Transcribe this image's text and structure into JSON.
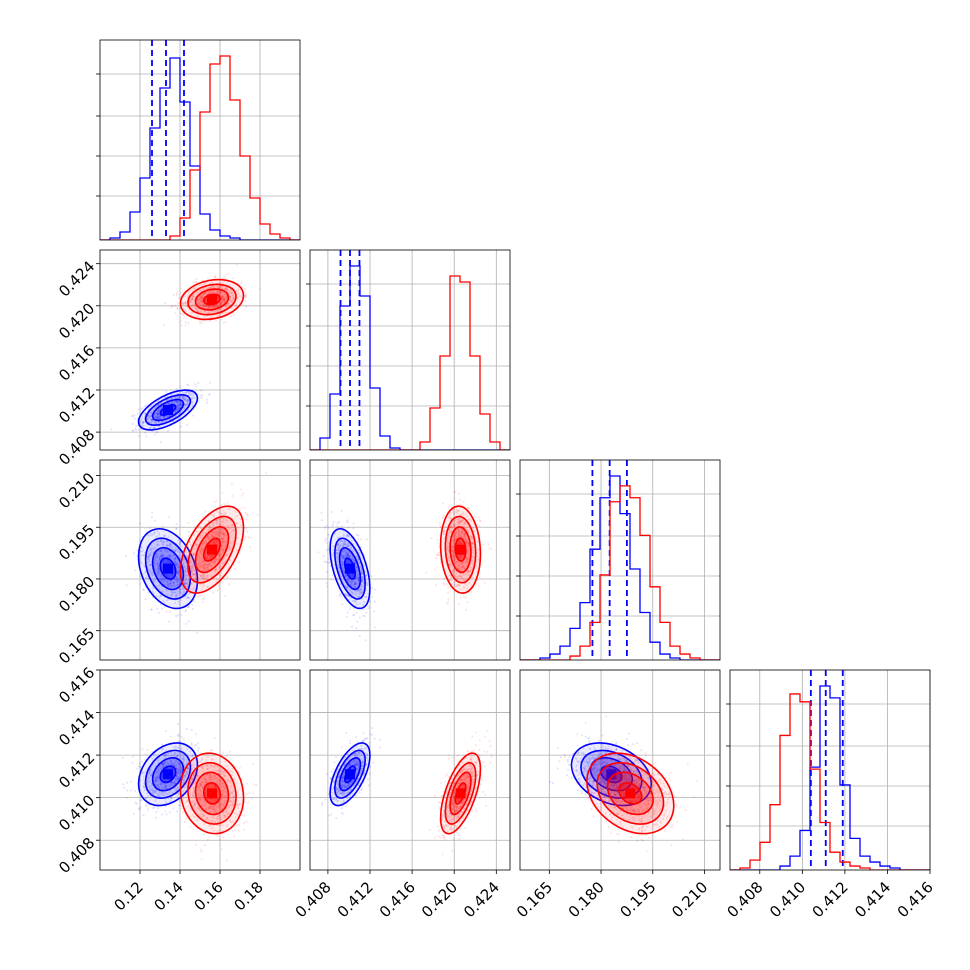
{
  "chart_data": {
    "type": "corner",
    "grid": true,
    "parameters": [
      {
        "index": 0,
        "range": [
          0.1,
          0.2
        ],
        "ticks": [
          0.12,
          0.14,
          0.16,
          0.18
        ],
        "tick_labels": [
          "0.12",
          "0.14",
          "0.16",
          "0.18"
        ],
        "ylabel_ticks": []
      },
      {
        "index": 1,
        "range": [
          0.4063,
          0.4253
        ],
        "ticks": [
          0.408,
          0.412,
          0.416,
          0.42,
          0.424
        ],
        "tick_labels": [
          "0.408",
          "0.412",
          "0.416",
          "0.420",
          "0.424"
        ]
      },
      {
        "index": 2,
        "range": [
          0.1565,
          0.2145
        ],
        "ticks": [
          0.165,
          0.18,
          0.195,
          0.21
        ],
        "tick_labels": [
          "0.165",
          "0.180",
          "0.195",
          "0.210"
        ]
      },
      {
        "index": 3,
        "range": [
          0.4066,
          0.416
        ],
        "ticks": [
          0.408,
          0.41,
          0.412,
          0.414,
          0.416
        ],
        "tick_labels": [
          "0.408",
          "0.410",
          "0.412",
          "0.414",
          "0.416"
        ]
      }
    ],
    "series": [
      {
        "color": "#0000ff",
        "means": [
          0.134,
          0.4101,
          0.183,
          0.4111
        ],
        "sigmas": [
          0.007,
          0.0009,
          0.0055,
          0.0007
        ],
        "correlations": {
          "1,0": 0.6,
          "2,0": -0.3,
          "2,1": -0.5,
          "3,0": 0.3,
          "3,1": 0.6,
          "3,2": -0.3
        },
        "quantile_lines": [
          [
            0.126,
            0.133,
            0.142
          ],
          [
            0.4092,
            0.4101,
            0.411
          ],
          [
            0.1775,
            0.1825,
            0.1875
          ],
          [
            0.4104,
            0.4111,
            0.4119
          ]
        ],
        "histograms": [
          {
            "edges_range": [
              0.1,
              0.2
            ],
            "counts": [
              0.0,
              0.01,
              0.04,
              0.14,
              0.31,
              0.56,
              0.76,
              0.91,
              0.69,
              0.37,
              0.13,
              0.05,
              0.02,
              0.01,
              0.0,
              0.0,
              0.0,
              0.0,
              0.0,
              0.0
            ]
          },
          {
            "edges_range": [
              0.4063,
              0.4253
            ],
            "counts": [
              0.0,
              0.06,
              0.28,
              0.72,
              0.92,
              0.77,
              0.31,
              0.07,
              0.01,
              0.0,
              0.0,
              0.0,
              0.0,
              0.0,
              0.0,
              0.0,
              0.0,
              0.0,
              0.0,
              0.0
            ]
          },
          {
            "edges_range": [
              0.1565,
              0.2145
            ],
            "counts": [
              0.0,
              0.0,
              0.01,
              0.03,
              0.07,
              0.16,
              0.29,
              0.56,
              0.82,
              0.93,
              0.74,
              0.46,
              0.24,
              0.09,
              0.03,
              0.01,
              0.0,
              0.0,
              0.0,
              0.0
            ]
          },
          {
            "edges_range": [
              0.4066,
              0.416
            ],
            "counts": [
              0.0,
              0.0,
              0.0,
              0.0,
              0.0,
              0.02,
              0.07,
              0.2,
              0.52,
              0.93,
              0.87,
              0.43,
              0.16,
              0.07,
              0.04,
              0.02,
              0.01,
              0.0,
              0.0,
              0.0
            ]
          }
        ]
      },
      {
        "color": "#ff0000",
        "means": [
          0.156,
          0.4206,
          0.1885,
          0.4102
        ],
        "sigmas": [
          0.0075,
          0.0009,
          0.006,
          0.0009
        ],
        "correlations": {
          "1,0": 0.2,
          "2,0": 0.5,
          "2,1": -0.1,
          "3,0": -0.1,
          "3,1": 0.6,
          "3,2": -0.3
        },
        "quantile_lines": [],
        "histograms": [
          {
            "edges_range": [
              0.1,
              0.2
            ],
            "counts": [
              0.0,
              0.0,
              0.0,
              0.0,
              0.0,
              0.0,
              0.0,
              0.02,
              0.11,
              0.35,
              0.64,
              0.88,
              0.92,
              0.7,
              0.42,
              0.21,
              0.08,
              0.03,
              0.01,
              0.0
            ]
          },
          {
            "edges_range": [
              0.4063,
              0.4253
            ],
            "counts": [
              0.0,
              0.0,
              0.0,
              0.0,
              0.0,
              0.0,
              0.0,
              0.0,
              0.0,
              0.0,
              0.0,
              0.04,
              0.21,
              0.47,
              0.87,
              0.84,
              0.47,
              0.18,
              0.04,
              0.0
            ]
          },
          {
            "edges_range": [
              0.1565,
              0.2145
            ],
            "counts": [
              0.0,
              0.0,
              0.0,
              0.0,
              0.0,
              0.02,
              0.07,
              0.19,
              0.43,
              0.8,
              0.88,
              0.82,
              0.63,
              0.37,
              0.19,
              0.07,
              0.03,
              0.01,
              0.0,
              0.0
            ]
          },
          {
            "edges_range": [
              0.4066,
              0.416
            ],
            "counts": [
              0.0,
              0.01,
              0.05,
              0.14,
              0.33,
              0.68,
              0.89,
              0.85,
              0.51,
              0.24,
              0.09,
              0.04,
              0.02,
              0.01,
              0.0,
              0.0,
              0.0,
              0.0,
              0.0,
              0.0
            ]
          }
        ]
      }
    ]
  }
}
